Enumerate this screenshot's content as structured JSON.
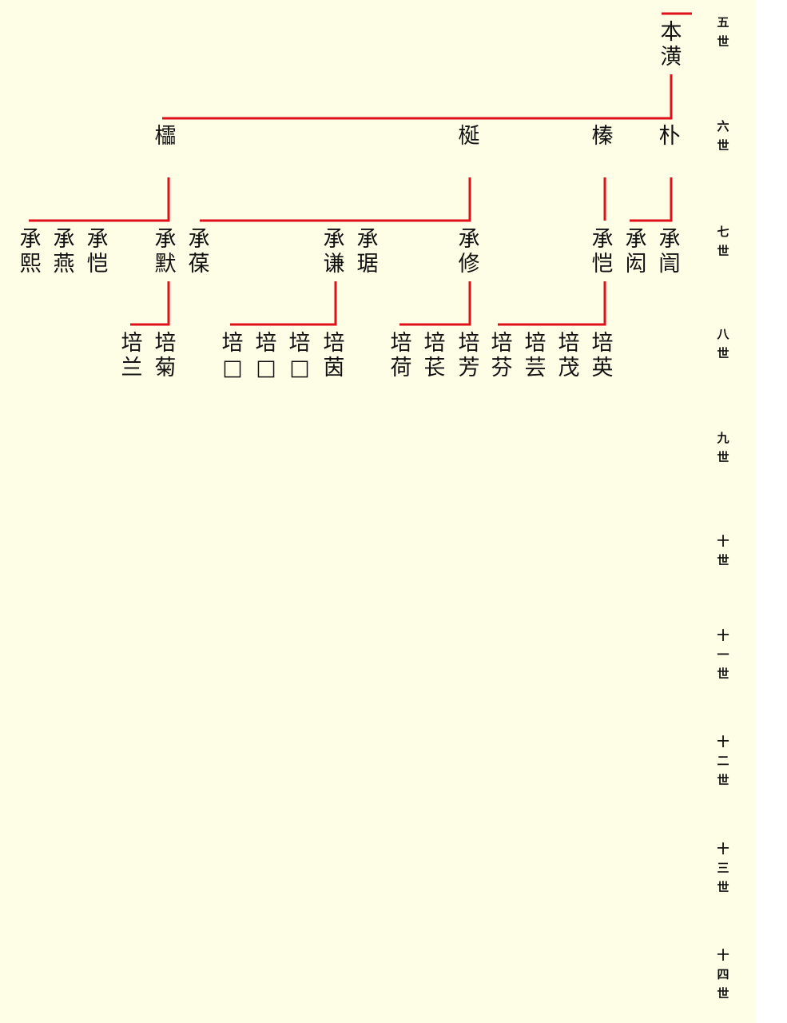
{
  "colors": {
    "line": "#e0101a",
    "background": "#fefee6"
  },
  "generations": [
    [
      "五",
      "世"
    ],
    [
      "六",
      "世"
    ],
    [
      "七",
      "世"
    ],
    [
      "八",
      "世"
    ],
    [
      "九",
      "世"
    ],
    [
      "十",
      "世"
    ],
    [
      "十",
      "一",
      "世"
    ],
    [
      "十",
      "二",
      "世"
    ],
    [
      "十",
      "三",
      "世"
    ],
    [
      "十",
      "四",
      "世"
    ]
  ],
  "gen5": [
    [
      "本",
      "潢"
    ]
  ],
  "gen6": [
    [
      "櫺"
    ],
    [
      "梴"
    ],
    [
      "榛"
    ],
    [
      "朴"
    ]
  ],
  "gen7": [
    [
      "承",
      "熙"
    ],
    [
      "承",
      "燕"
    ],
    [
      "承",
      "恺"
    ],
    [
      "承",
      "默"
    ],
    [
      "承",
      "葆"
    ],
    [
      "承",
      "谦"
    ],
    [
      "承",
      "琚"
    ],
    [
      "承",
      "修"
    ],
    [
      "承",
      "恺"
    ],
    [
      "承",
      "闳"
    ],
    [
      "承",
      "訚"
    ]
  ],
  "gen8": [
    [
      "培",
      "兰"
    ],
    [
      "培",
      "菊"
    ],
    [
      "培",
      "□"
    ],
    [
      "培",
      "□"
    ],
    [
      "培",
      "□"
    ],
    [
      "培",
      "茵"
    ],
    [
      "培",
      "荷"
    ],
    [
      "培",
      "苌"
    ],
    [
      "培",
      "芳"
    ],
    [
      "培",
      "芬"
    ],
    [
      "培",
      "芸"
    ],
    [
      "培",
      "茂"
    ],
    [
      "培",
      "英"
    ]
  ]
}
